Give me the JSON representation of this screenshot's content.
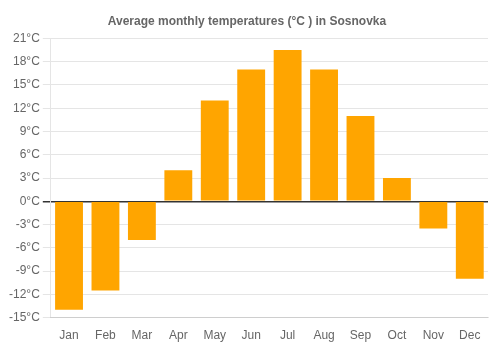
{
  "chart_data": {
    "type": "bar",
    "title": "Average monthly temperatures (°C ) in Sosnovka",
    "categories": [
      "Jan",
      "Feb",
      "Mar",
      "Apr",
      "May",
      "Jun",
      "Jul",
      "Aug",
      "Sep",
      "Oct",
      "Nov",
      "Dec"
    ],
    "values": [
      -14,
      -11.5,
      -5,
      4,
      13,
      17,
      19.5,
      17,
      11,
      3,
      -3.5,
      -10
    ],
    "color": "#FFA500",
    "ylim": [
      -15,
      21
    ],
    "yticks": [
      {
        "value": -15,
        "label": "-15°C"
      },
      {
        "value": -12,
        "label": "-12°C"
      },
      {
        "value": -9,
        "label": "-9°C"
      },
      {
        "value": -6,
        "label": "-6°C"
      },
      {
        "value": -3,
        "label": "-3°C"
      },
      {
        "value": 0,
        "label": "0°C"
      },
      {
        "value": 3,
        "label": "3°C"
      },
      {
        "value": 6,
        "label": "6°C"
      },
      {
        "value": 9,
        "label": "9°C"
      },
      {
        "value": 12,
        "label": "12°C"
      },
      {
        "value": 15,
        "label": "15°C"
      },
      {
        "value": 18,
        "label": "18°C"
      },
      {
        "value": 21,
        "label": "21°C"
      }
    ],
    "grid": true
  }
}
